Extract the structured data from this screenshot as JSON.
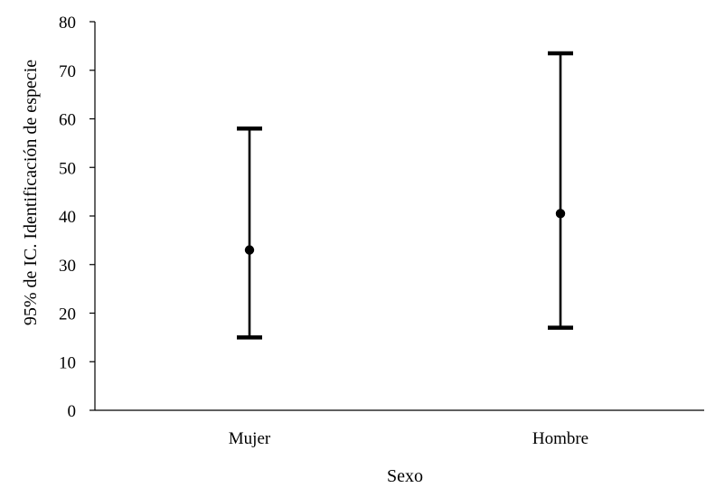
{
  "chart_data": {
    "type": "errorbar",
    "xlabel": "Sexo",
    "ylabel": "95% de IC. Identificación de especie",
    "ylim": [
      0,
      80
    ],
    "yticks": [
      0,
      10,
      20,
      30,
      40,
      50,
      60,
      70,
      80
    ],
    "grid": false,
    "legend": "none",
    "categories": [
      "Mujer",
      "Hombre"
    ],
    "points": [
      {
        "category": "Mujer",
        "mean": 33.0,
        "lower": 15.0,
        "upper": 58.0
      },
      {
        "category": "Hombre",
        "mean": 40.5,
        "lower": 17.0,
        "upper": 73.5
      }
    ],
    "colors": {
      "marks": "#000000",
      "axis": "#000000"
    }
  }
}
